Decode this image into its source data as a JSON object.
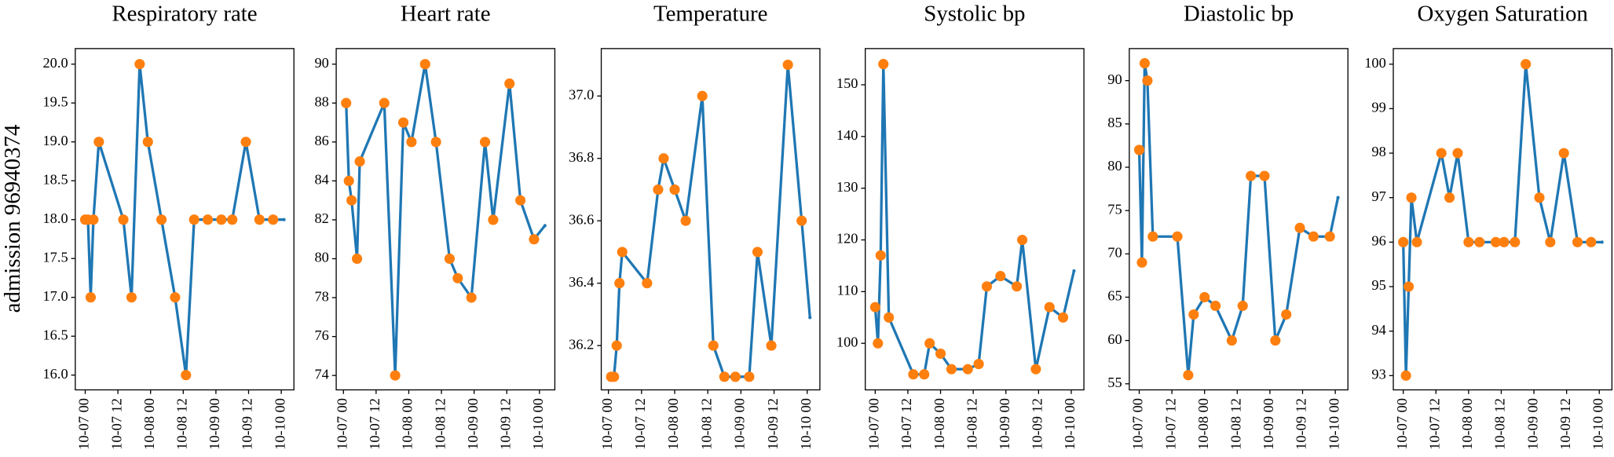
{
  "chart_data": [
    {
      "type": "line",
      "title": "Respiratory rate",
      "ylabel": "admission 96940374",
      "ylim": [
        15.81,
        20.2
      ],
      "yticks": [
        {
          "value": 16,
          "label": "16.0"
        },
        16.5,
        {
          "value": 17,
          "label": "17.0"
        },
        17.5,
        {
          "value": 18,
          "label": "18.0"
        },
        18.5,
        {
          "value": 19,
          "label": "19.0"
        },
        19.5,
        {
          "value": 20,
          "label": "20.0"
        }
      ],
      "xticks": [
        "10-07 00",
        "10-07 12",
        "10-08 00",
        "10-08 12",
        "10-09 00",
        "10-09 12",
        "10-10 00"
      ],
      "series": [
        {
          "color": "#1f77b4",
          "linestyle": "-",
          "x": [
            "10-07 00",
            "10-07 01",
            "10-07 02",
            "10-07 03",
            "10-07 05",
            "10-07 14",
            "10-07 17",
            "10-07 20",
            "10-07 23",
            "10-08 04",
            "10-08 09",
            "10-08 13",
            "10-08 16",
            "10-08 21",
            "10-09 02",
            "10-09 06",
            "10-09 11",
            "10-09 16",
            "10-09 21",
            "10-10 01"
          ],
          "values": [
            18,
            18,
            17,
            18,
            19,
            18,
            17,
            20,
            19,
            18,
            17,
            16,
            18,
            18,
            18,
            18,
            19,
            18,
            18,
            18
          ]
        },
        {
          "color": "#ff7f0e",
          "linestyle": "none",
          "x": [
            "10-07 00",
            "10-07 01",
            "10-07 02",
            "10-07 03",
            "10-07 05",
            "10-07 14",
            "10-07 17",
            "10-07 20",
            "10-07 23",
            "10-08 04",
            "10-08 09",
            "10-08 13",
            "10-08 16",
            "10-08 21",
            "10-09 02",
            "10-09 06",
            "10-09 11",
            "10-09 16",
            "10-09 21"
          ],
          "values": [
            18,
            18,
            17,
            18,
            19,
            18,
            17,
            20,
            19,
            18,
            17,
            16,
            18,
            18,
            18,
            18,
            19,
            18,
            18
          ]
        }
      ]
    },
    {
      "type": "line",
      "title": "Heart rate",
      "ylim": [
        73.26,
        90.8
      ],
      "yticks": [
        74,
        76,
        78,
        80,
        82,
        84,
        86,
        88,
        90
      ],
      "xticks": [
        "10-07 00",
        "10-07 12",
        "10-08 00",
        "10-08 12",
        "10-09 00",
        "10-09 12",
        "10-10 00"
      ],
      "series": [
        {
          "color": "#1f77b4",
          "linestyle": "-",
          "x": [
            "10-07 01",
            "10-07 02",
            "10-07 03",
            "10-07 05",
            "10-07 06",
            "10-07 15",
            "10-07 19",
            "10-07 22",
            "10-08 01",
            "10-08 06",
            "10-08 10",
            "10-08 15",
            "10-08 18",
            "10-08 23",
            "10-09 04",
            "10-09 07",
            "10-09 13",
            "10-09 17",
            "10-09 22",
            "10-10 02"
          ],
          "values": [
            88,
            84,
            83,
            80,
            85,
            88,
            74,
            87,
            86,
            90,
            86,
            80,
            79,
            78,
            86,
            82,
            89,
            83,
            81,
            81.7
          ]
        },
        {
          "color": "#ff7f0e",
          "linestyle": "none",
          "x": [
            "10-07 01",
            "10-07 02",
            "10-07 03",
            "10-07 05",
            "10-07 06",
            "10-07 15",
            "10-07 19",
            "10-07 22",
            "10-08 01",
            "10-08 06",
            "10-08 10",
            "10-08 15",
            "10-08 18",
            "10-08 23",
            "10-09 04",
            "10-09 07",
            "10-09 13",
            "10-09 17",
            "10-09 22"
          ],
          "values": [
            88,
            84,
            83,
            80,
            85,
            88,
            74,
            87,
            86,
            90,
            86,
            80,
            79,
            78,
            86,
            82,
            89,
            83,
            81
          ]
        }
      ]
    },
    {
      "type": "line",
      "title": "Temperature",
      "ylim": [
        36.058,
        37.152
      ],
      "yticks": [
        36.2,
        36.4,
        36.6,
        36.8,
        {
          "value": 37,
          "label": "37.0"
        }
      ],
      "xticks": [
        "10-07 00",
        "10-07 12",
        "10-08 00",
        "10-08 12",
        "10-09 00",
        "10-09 12",
        "10-10 00"
      ],
      "series": [
        {
          "color": "#1f77b4",
          "linestyle": "-",
          "x": [
            "10-07 01",
            "10-07 02",
            "10-07 03",
            "10-07 04",
            "10-07 05",
            "10-07 14",
            "10-07 18",
            "10-07 20",
            "10-08 00",
            "10-08 04",
            "10-08 10",
            "10-08 14",
            "10-08 18",
            "10-08 22",
            "10-09 03",
            "10-09 06",
            "10-09 11",
            "10-09 17",
            "10-09 22",
            "10-10 01"
          ],
          "values": [
            36.1,
            36.1,
            36.2,
            36.4,
            36.5,
            36.4,
            36.7,
            36.8,
            36.7,
            36.6,
            37.0,
            36.2,
            36.1,
            36.1,
            36.1,
            36.5,
            36.2,
            37.1,
            36.6,
            36.29
          ]
        },
        {
          "color": "#ff7f0e",
          "linestyle": "none",
          "x": [
            "10-07 01",
            "10-07 02",
            "10-07 03",
            "10-07 04",
            "10-07 05",
            "10-07 14",
            "10-07 18",
            "10-07 20",
            "10-08 00",
            "10-08 04",
            "10-08 10",
            "10-08 14",
            "10-08 18",
            "10-08 22",
            "10-09 03",
            "10-09 06",
            "10-09 11",
            "10-09 17",
            "10-09 22"
          ],
          "values": [
            36.1,
            36.1,
            36.2,
            36.4,
            36.5,
            36.4,
            36.7,
            36.8,
            36.7,
            36.6,
            37.0,
            36.2,
            36.1,
            36.1,
            36.1,
            36.5,
            36.2,
            37.1,
            36.6
          ]
        }
      ]
    },
    {
      "type": "line",
      "title": "Systolic bp",
      "ylim": [
        91.0,
        157
      ],
      "yticks": [
        100,
        110,
        120,
        130,
        140,
        150
      ],
      "xticks": [
        "10-07 00",
        "10-07 12",
        "10-08 00",
        "10-08 12",
        "10-09 00",
        "10-09 12",
        "10-10 00"
      ],
      "series": [
        {
          "color": "#1f77b4",
          "linestyle": "-",
          "x": [
            "10-07 00",
            "10-07 01",
            "10-07 02",
            "10-07 03",
            "10-07 05",
            "10-07 14",
            "10-07 18",
            "10-07 20",
            "10-08 00",
            "10-08 04",
            "10-08 10",
            "10-08 14",
            "10-08 17",
            "10-08 22",
            "10-09 04",
            "10-09 06",
            "10-09 11",
            "10-09 16",
            "10-09 21",
            "10-10 01"
          ],
          "values": [
            107,
            100,
            117,
            154,
            105,
            94,
            94,
            100,
            98,
            95,
            95,
            96,
            111,
            113,
            111,
            120,
            95,
            107,
            105,
            114
          ]
        },
        {
          "color": "#ff7f0e",
          "linestyle": "none",
          "x": [
            "10-07 00",
            "10-07 01",
            "10-07 02",
            "10-07 03",
            "10-07 05",
            "10-07 14",
            "10-07 18",
            "10-07 20",
            "10-08 00",
            "10-08 04",
            "10-08 10",
            "10-08 14",
            "10-08 17",
            "10-08 22",
            "10-09 04",
            "10-09 06",
            "10-09 11",
            "10-09 16",
            "10-09 21"
          ],
          "values": [
            107,
            100,
            117,
            154,
            105,
            94,
            94,
            100,
            98,
            95,
            95,
            96,
            111,
            113,
            111,
            120,
            95,
            107,
            105
          ]
        }
      ]
    },
    {
      "type": "line",
      "title": "Diastolic bp",
      "ylim": [
        54.3,
        93.7
      ],
      "yticks": [
        55,
        60,
        65,
        70,
        75,
        80,
        85,
        90
      ],
      "xticks": [
        "10-07 00",
        "10-07 12",
        "10-08 00",
        "10-08 12",
        "10-09 00",
        "10-09 12",
        "10-10 00"
      ],
      "series": [
        {
          "color": "#1f77b4",
          "linestyle": "-",
          "x": [
            "10-07 00",
            "10-07 01",
            "10-07 02",
            "10-07 03",
            "10-07 05",
            "10-07 14",
            "10-07 18",
            "10-07 20",
            "10-08 00",
            "10-08 04",
            "10-08 10",
            "10-08 14",
            "10-08 17",
            "10-08 22",
            "10-09 02",
            "10-09 06",
            "10-09 11",
            "10-09 16",
            "10-09 22",
            "10-10 01"
          ],
          "values": [
            82,
            69,
            92,
            90,
            72,
            72,
            56,
            63,
            65,
            64,
            60,
            64,
            79,
            79,
            60,
            63,
            73,
            72,
            72,
            76.5
          ]
        },
        {
          "color": "#ff7f0e",
          "linestyle": "none",
          "x": [
            "10-07 00",
            "10-07 01",
            "10-07 02",
            "10-07 03",
            "10-07 05",
            "10-07 14",
            "10-07 18",
            "10-07 20",
            "10-08 00",
            "10-08 04",
            "10-08 10",
            "10-08 14",
            "10-08 17",
            "10-08 22",
            "10-09 02",
            "10-09 06",
            "10-09 11",
            "10-09 16",
            "10-09 22"
          ],
          "values": [
            82,
            69,
            92,
            90,
            72,
            72,
            56,
            63,
            65,
            64,
            60,
            64,
            79,
            79,
            60,
            63,
            73,
            72,
            72
          ]
        }
      ]
    },
    {
      "type": "line",
      "title": "Oxygen Saturation",
      "ylim": [
        92.68,
        100.35
      ],
      "yticks": [
        93,
        94,
        95,
        96,
        97,
        98,
        99,
        100
      ],
      "xticks": [
        "10-07 00",
        "10-07 12",
        "10-08 00",
        "10-08 12",
        "10-09 00",
        "10-09 12",
        "10-10 00"
      ],
      "series": [
        {
          "color": "#1f77b4",
          "linestyle": "-",
          "x": [
            "10-07 00",
            "10-07 01",
            "10-07 02",
            "10-07 03",
            "10-07 05",
            "10-07 14",
            "10-07 17",
            "10-07 20",
            "10-08 00",
            "10-08 04",
            "10-08 10",
            "10-08 13",
            "10-08 17",
            "10-08 21",
            "10-09 02",
            "10-09 06",
            "10-09 11",
            "10-09 16",
            "10-09 21",
            "10-10 01"
          ],
          "values": [
            96,
            93,
            95,
            97,
            96,
            98,
            97,
            98,
            96,
            96,
            96,
            96,
            96,
            100,
            97,
            96,
            98,
            96,
            96,
            96
          ]
        },
        {
          "color": "#ff7f0e",
          "linestyle": "none",
          "x": [
            "10-07 00",
            "10-07 01",
            "10-07 02",
            "10-07 03",
            "10-07 05",
            "10-07 14",
            "10-07 17",
            "10-07 20",
            "10-08 00",
            "10-08 04",
            "10-08 10",
            "10-08 13",
            "10-08 17",
            "10-08 21",
            "10-09 02",
            "10-09 06",
            "10-09 11",
            "10-09 16",
            "10-09 21"
          ],
          "values": [
            96,
            93,
            95,
            97,
            96,
            98,
            97,
            98,
            96,
            96,
            96,
            96,
            96,
            100,
            97,
            96,
            98,
            96,
            96
          ]
        }
      ]
    }
  ]
}
